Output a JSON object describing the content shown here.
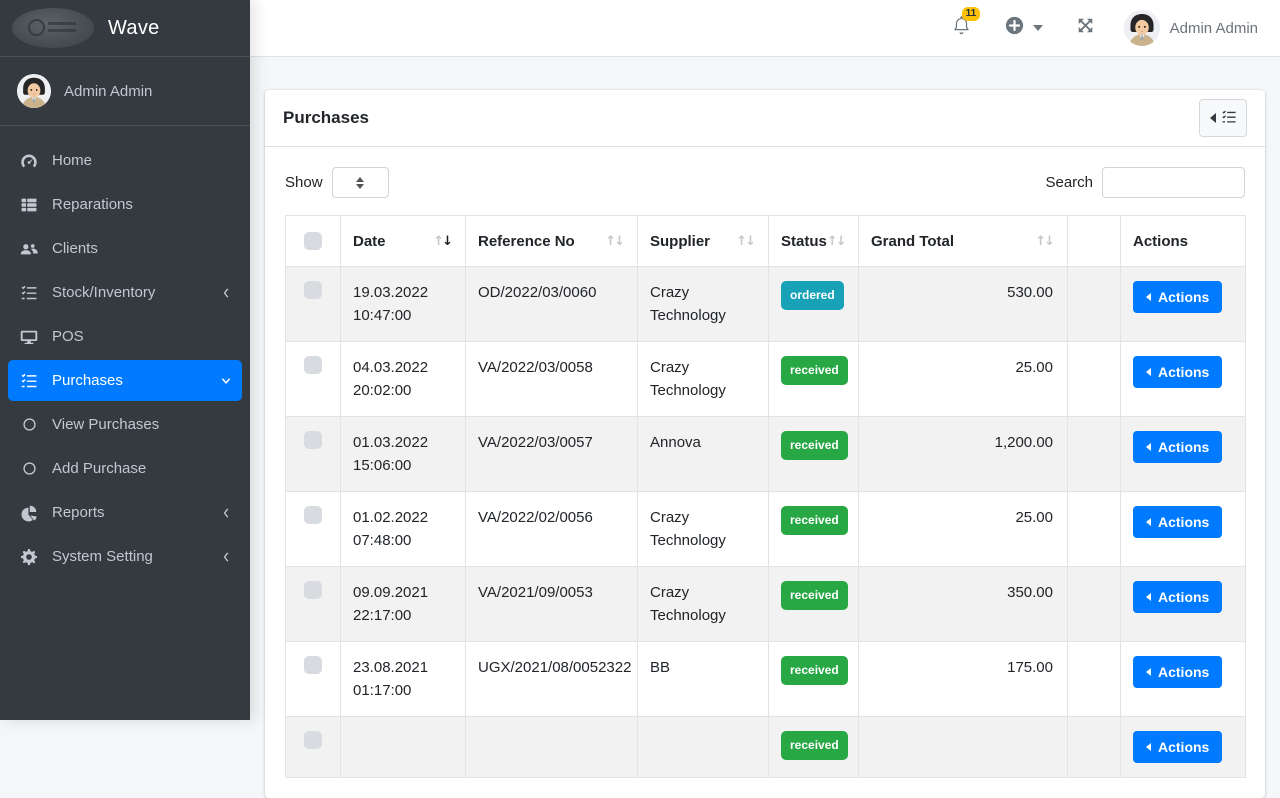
{
  "brand": "Wave",
  "topbar": {
    "notification_count": "11",
    "user_name": "Admin Admin"
  },
  "sidebar": {
    "user_name": "Admin Admin",
    "items": [
      {
        "label": "Home",
        "icon": "tachometer-icon"
      },
      {
        "label": "Reparations",
        "icon": "th-list-icon"
      },
      {
        "label": "Clients",
        "icon": "users-icon"
      },
      {
        "label": "Stock/Inventory",
        "icon": "tasks-icon",
        "chevron": "left"
      },
      {
        "label": "POS",
        "icon": "desktop-icon"
      },
      {
        "label": "Purchases",
        "icon": "tasks-icon",
        "chevron": "down",
        "active": true
      },
      {
        "label": "View Purchases",
        "icon": "circle-icon",
        "sub": true
      },
      {
        "label": "Add Purchase",
        "icon": "circle-icon",
        "sub": true
      },
      {
        "label": "Reports",
        "icon": "chart-pie-icon",
        "chevron": "left"
      },
      {
        "label": "System Setting",
        "icon": "cog-icon",
        "chevron": "left"
      }
    ]
  },
  "page": {
    "card_title": "Purchases",
    "show_label": "Show",
    "show_value": "",
    "search_label": "Search",
    "search_value": ""
  },
  "table": {
    "headers": {
      "date": "Date",
      "reference": "Reference No",
      "supplier": "Supplier",
      "status": "Status",
      "total": "Grand Total",
      "actions": "Actions"
    },
    "sorted_by": "date",
    "actions_label": "Actions",
    "rows": [
      {
        "date": "19.03.2022",
        "time": "10:47:00",
        "reference": "OD/2022/03/0060",
        "supplier": "Crazy Technology",
        "status": "ordered",
        "total": "530.00"
      },
      {
        "date": "04.03.2022",
        "time": "20:02:00",
        "reference": "VA/2022/03/0058",
        "supplier": "Crazy Technology",
        "status": "received",
        "total": "25.00"
      },
      {
        "date": "01.03.2022",
        "time": "15:06:00",
        "reference": "VA/2022/03/0057",
        "supplier": "Annova",
        "status": "received",
        "total": "1,200.00"
      },
      {
        "date": "01.02.2022",
        "time": "07:48:00",
        "reference": "VA/2022/02/0056",
        "supplier": "Crazy Technology",
        "status": "received",
        "total": "25.00"
      },
      {
        "date": "09.09.2021",
        "time": "22:17:00",
        "reference": "VA/2021/09/0053",
        "supplier": "Crazy Technology",
        "status": "received",
        "total": "350.00"
      },
      {
        "date": "23.08.2021",
        "time": "01:17:00",
        "reference": "UGX/2021/08/0052322",
        "supplier": "BB",
        "status": "received",
        "total": "175.00"
      },
      {
        "date": "",
        "time": "",
        "reference": "",
        "supplier": "",
        "status": "received",
        "total": "",
        "partial": true
      }
    ]
  },
  "colors": {
    "primary": "#007bff",
    "sidebar_bg": "#343a40",
    "body_bg": "#f4f6f9",
    "badge_warning": "#ffc107",
    "status": {
      "ordered": "#17a2b8",
      "received": "#28a745"
    }
  }
}
